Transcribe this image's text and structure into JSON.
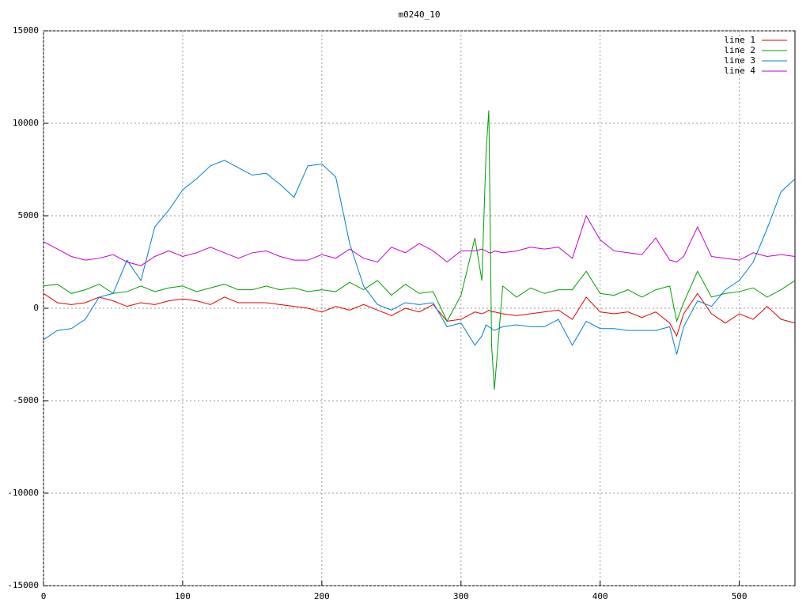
{
  "chart_data": {
    "type": "line",
    "title": "m0240_10",
    "x": [
      0,
      10,
      20,
      30,
      40,
      50,
      60,
      70,
      80,
      90,
      100,
      110,
      120,
      130,
      140,
      150,
      160,
      170,
      180,
      190,
      200,
      210,
      220,
      230,
      240,
      250,
      260,
      270,
      280,
      290,
      300,
      310,
      315,
      318,
      320,
      322,
      324,
      330,
      340,
      350,
      360,
      370,
      380,
      390,
      400,
      410,
      420,
      430,
      440,
      450,
      455,
      460,
      470,
      480,
      490,
      500,
      510,
      520,
      530,
      540
    ],
    "series": [
      {
        "name": "line 1",
        "color": "#e00000",
        "values": [
          800,
          300,
          200,
          300,
          600,
          400,
          100,
          300,
          200,
          400,
          500,
          400,
          200,
          600,
          300,
          300,
          300,
          200,
          100,
          0,
          -200,
          100,
          -100,
          200,
          -100,
          -400,
          0,
          -200,
          200,
          -700,
          -600,
          -200,
          -300,
          -200,
          -100,
          -200,
          -200,
          -300,
          -400,
          -300,
          -200,
          -100,
          -600,
          600,
          -200,
          -300,
          -200,
          -500,
          -200,
          -800,
          -1500,
          -300,
          800,
          -300,
          -800,
          -300,
          -600,
          100,
          -600,
          -800
        ]
      },
      {
        "name": "line 2",
        "color": "#00a000",
        "values": [
          1200,
          1300,
          800,
          1000,
          1300,
          800,
          900,
          1200,
          900,
          1100,
          1200,
          900,
          1100,
          1300,
          1000,
          1000,
          1200,
          1000,
          1100,
          900,
          1000,
          900,
          1400,
          1000,
          1500,
          700,
          1300,
          800,
          900,
          -700,
          700,
          3800,
          1500,
          8400,
          10700,
          -2000,
          -4400,
          1200,
          600,
          1100,
          800,
          1000,
          1000,
          2000,
          800,
          700,
          1000,
          600,
          1000,
          1200,
          -700,
          300,
          2000,
          600,
          800,
          900,
          1100,
          600,
          1000,
          1500
        ]
      },
      {
        "name": "line 3",
        "color": "#0080d0",
        "values": [
          -1700,
          -1200,
          -1100,
          -600,
          600,
          800,
          2600,
          1500,
          4400,
          5300,
          6400,
          7000,
          7700,
          8000,
          7600,
          7200,
          7300,
          6700,
          6000,
          7700,
          7800,
          7100,
          3500,
          1200,
          200,
          -100,
          300,
          200,
          300,
          -1000,
          -800,
          -2000,
          -1500,
          -900,
          -1000,
          -1100,
          -1200,
          -1000,
          -900,
          -1000,
          -1000,
          -600,
          -2000,
          -700,
          -1100,
          -1100,
          -1200,
          -1200,
          -1200,
          -1000,
          -2500,
          -1000,
          400,
          100,
          1000,
          1500,
          2500,
          4300,
          6300,
          7000
        ]
      },
      {
        "name": "line 4",
        "color": "#c000d0",
        "values": [
          3600,
          3200,
          2800,
          2600,
          2700,
          2900,
          2500,
          2300,
          2800,
          3100,
          2800,
          3000,
          3300,
          3000,
          2700,
          3000,
          3100,
          2800,
          2600,
          2600,
          2900,
          2700,
          3200,
          2700,
          2500,
          3300,
          3000,
          3500,
          3100,
          2500,
          3100,
          3100,
          3200,
          3100,
          3000,
          3000,
          3100,
          3000,
          3100,
          3300,
          3200,
          3300,
          2700,
          5000,
          3700,
          3100,
          3000,
          2900,
          3800,
          2600,
          2500,
          2800,
          4400,
          2800,
          2700,
          2600,
          3000,
          2800,
          2900,
          2800
        ]
      }
    ],
    "xlim": [
      0,
      540
    ],
    "xticks": [
      0,
      100,
      200,
      300,
      400,
      500
    ],
    "ylim": [
      -15000,
      15000
    ],
    "yticks": [
      -15000,
      -10000,
      -5000,
      0,
      5000,
      10000,
      15000
    ],
    "grid": true,
    "legend": "top-right"
  }
}
